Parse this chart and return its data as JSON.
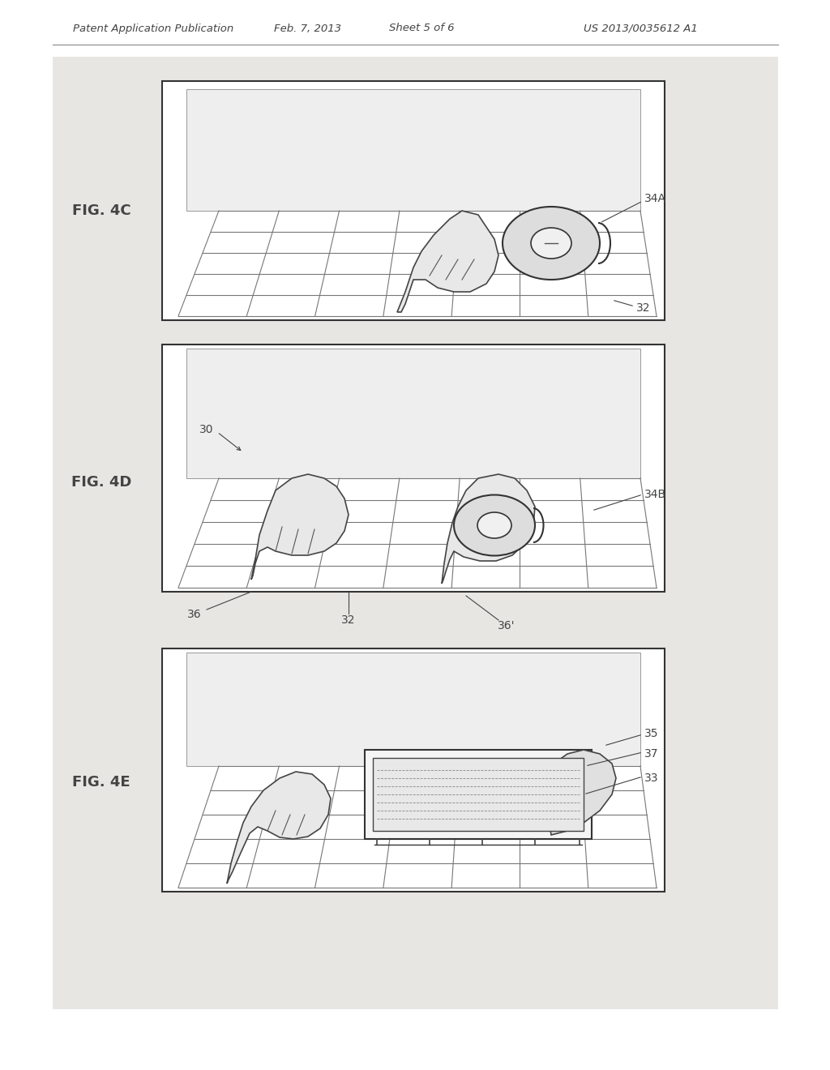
{
  "background_color": "#f0eeeb",
  "page_background": "#ffffff",
  "header_text": "Patent Application Publication",
  "header_date": "Feb. 7, 2013",
  "header_sheet": "Sheet 5 of 6",
  "header_patent": "US 2013/0035612 A1",
  "fig4c_label": "FIG. 4C",
  "fig4d_label": "FIG. 4D",
  "fig4e_label": "FIG. 4E",
  "label_34A": "34A",
  "label_34B": "34B",
  "label_32_4c": "32",
  "label_32_4d": "32",
  "label_30": "30",
  "label_36": "36",
  "label_36p": "36'",
  "label_35": "35",
  "label_37": "37",
  "label_33": "33",
  "line_color": "#555555",
  "text_color": "#444444",
  "grid_color": "#666666",
  "box_color": "#333333",
  "outer_bg": "#e8e6e3"
}
